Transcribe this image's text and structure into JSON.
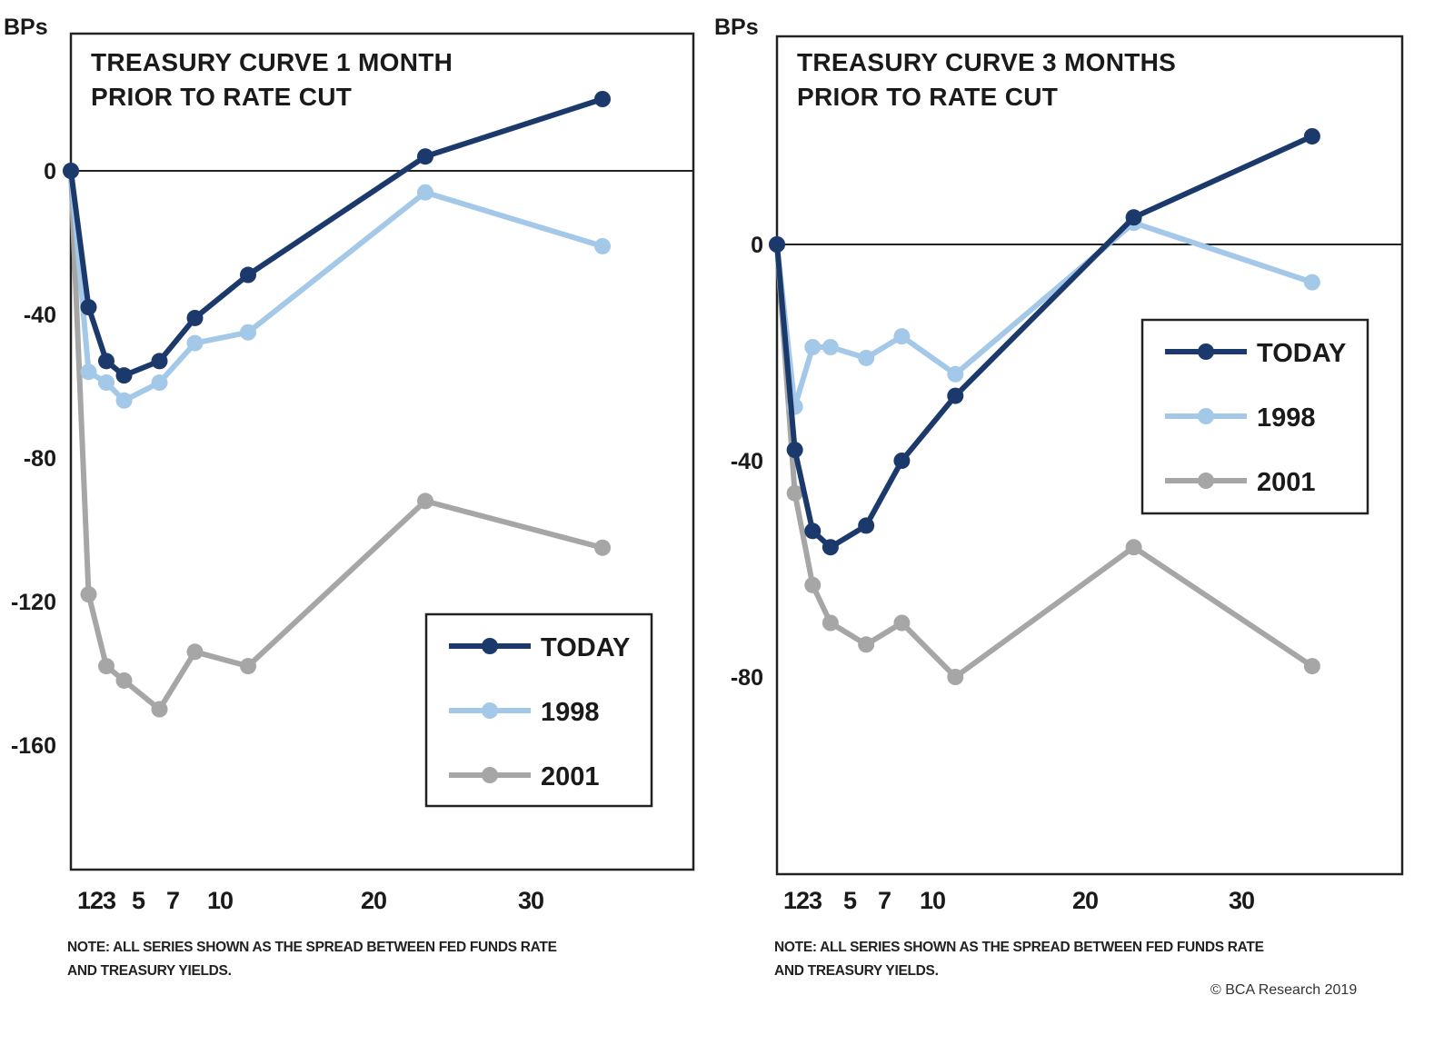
{
  "chart_data": [
    {
      "type": "line",
      "title": "TREASURY CURVE 1 MONTH PRIOR TO RATE CUT",
      "title_lines": [
        "TREASURY CURVE 1 MONTH",
        "PRIOR TO RATE CUT"
      ],
      "ylabel": "BPs",
      "xlabel": "",
      "ylim": [
        -195,
        40
      ],
      "xlim": [
        0,
        35
      ],
      "yticks": [
        0,
        -40,
        -80,
        -120,
        -160
      ],
      "ytick_labels": [
        "0",
        "-40",
        "-80",
        "-120",
        "-160"
      ],
      "xtick_labels": [
        "123",
        "5",
        "7",
        "10",
        "20",
        "30"
      ],
      "zero_line": true,
      "grid": false,
      "legend_position": "bottom-right",
      "x": [
        0,
        1,
        2,
        3,
        5,
        7,
        10,
        20,
        30
      ],
      "series": [
        {
          "name": "TODAY",
          "color": "#1b3a6b",
          "values": [
            0,
            -38,
            -53,
            -57,
            -53,
            -41,
            -29,
            4,
            20
          ]
        },
        {
          "name": "1998",
          "color": "#a4c8e8",
          "values": [
            0,
            -56,
            -59,
            -64,
            -59,
            -48,
            -45,
            -6,
            -21
          ]
        },
        {
          "name": "2001",
          "color": "#a6a6a6",
          "values": [
            0,
            -118,
            -138,
            -142,
            -150,
            -134,
            -138,
            -92,
            -105
          ]
        }
      ],
      "note": "NOTE: ALL SERIES SHOWN AS THE SPREAD BETWEEN FED FUNDS RATE AND TREASURY YIELDS.",
      "note_lines": [
        "NOTE: ALL SERIES SHOWN AS THE SPREAD BETWEEN FED FUNDS RATE",
        "AND TREASURY YIELDS."
      ]
    },
    {
      "type": "line",
      "title": "TREASURY CURVE 3 MONTHS PRIOR TO RATE CUT",
      "title_lines": [
        "TREASURY CURVE 3 MONTHS",
        "PRIOR TO RATE CUT"
      ],
      "ylabel": "BPs",
      "xlabel": "",
      "ylim": [
        -116,
        39
      ],
      "xlim": [
        0,
        35
      ],
      "yticks": [
        0,
        -40,
        -80
      ],
      "ytick_labels": [
        "0",
        "-40",
        "-80"
      ],
      "xtick_labels": [
        "123",
        "5",
        "7",
        "10",
        "20",
        "30"
      ],
      "zero_line": true,
      "grid": false,
      "legend_position": "top-right",
      "x": [
        0,
        1,
        2,
        3,
        5,
        7,
        10,
        20,
        30
      ],
      "series": [
        {
          "name": "TODAY",
          "color": "#1b3a6b",
          "values": [
            0,
            -38,
            -53,
            -56,
            -52,
            -40,
            -28,
            5,
            20
          ]
        },
        {
          "name": "1998",
          "color": "#a4c8e8",
          "values": [
            0,
            -30,
            -19,
            -19,
            -21,
            -17,
            -24,
            4,
            -7
          ]
        },
        {
          "name": "2001",
          "color": "#a6a6a6",
          "values": [
            0,
            -46,
            -63,
            -70,
            -74,
            -70,
            -80,
            -56,
            -78
          ]
        }
      ],
      "note": "NOTE: ALL SERIES SHOWN AS THE SPREAD BETWEEN FED FUNDS RATE AND TREASURY YIELDS.",
      "note_lines": [
        "NOTE: ALL SERIES SHOWN AS THE SPREAD BETWEEN FED FUNDS RATE",
        "AND TREASURY YIELDS."
      ]
    }
  ],
  "copyright": "© BCA Research 2019"
}
